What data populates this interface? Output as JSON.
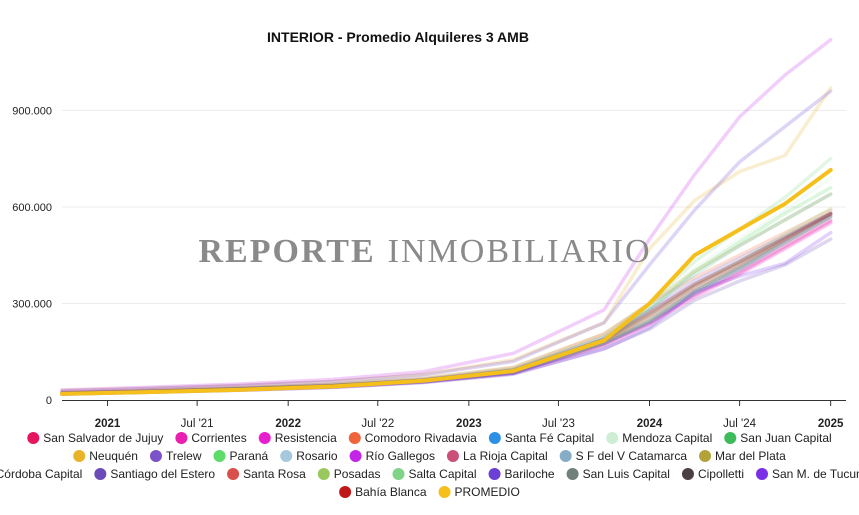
{
  "watermark": {
    "bold": "REPORTE",
    "rest": "INMOBILIARIO"
  },
  "colors": {
    "gridline": "#ececec",
    "axis": "#333333",
    "promedio": "#f5c01b"
  },
  "chart_data": {
    "type": "line",
    "title": "INTERIOR - Promedio Alquileres 3 AMB",
    "xlabel": "",
    "ylabel": "",
    "x_ticks": [
      {
        "label": "2021",
        "x": "2021-01-01",
        "major": true
      },
      {
        "label": "Jul '21",
        "x": "2021-07-01",
        "major": false
      },
      {
        "label": "2022",
        "x": "2022-01-01",
        "major": true
      },
      {
        "label": "Jul '22",
        "x": "2022-07-01",
        "major": false
      },
      {
        "label": "2023",
        "x": "2023-01-01",
        "major": true
      },
      {
        "label": "Jul '23",
        "x": "2023-07-01",
        "major": false
      },
      {
        "label": "2024",
        "x": "2024-01-01",
        "major": true
      },
      {
        "label": "Jul '24",
        "x": "2024-07-01",
        "major": false
      },
      {
        "label": "2025",
        "x": "2025-01-01",
        "major": true
      }
    ],
    "xlim": [
      "2020-10-01",
      "2025-02-01"
    ],
    "y_ticks": [
      {
        "label": "0",
        "value": 0
      },
      {
        "label": "300.000",
        "value": 300000
      },
      {
        "label": "600.000",
        "value": 600000
      },
      {
        "label": "900.000",
        "value": 900000
      }
    ],
    "ylim": [
      0,
      1150000
    ],
    "grid": true,
    "legend_position": "bottom",
    "x": [
      "2020-10-01",
      "2021-04-01",
      "2021-10-01",
      "2022-04-01",
      "2022-10-01",
      "2023-04-01",
      "2023-10-01",
      "2024-01-01",
      "2024-04-01",
      "2024-07-01",
      "2024-10-01",
      "2025-01-01"
    ],
    "series": [
      {
        "name": "San Salvador de Jujuy",
        "color": "#e5165f",
        "values": [
          20000,
          26000,
          33000,
          42000,
          58000,
          85000,
          175000,
          240000,
          330000,
          400000,
          480000,
          560000
        ]
      },
      {
        "name": "Corrientes",
        "color": "#ea1fb0",
        "values": [
          19000,
          25000,
          31000,
          40000,
          56000,
          83000,
          170000,
          235000,
          320000,
          390000,
          470000,
          550000
        ]
      },
      {
        "name": "Resistencia",
        "color": "#e81fcf",
        "values": [
          19000,
          25000,
          32000,
          41000,
          57000,
          84000,
          172000,
          238000,
          325000,
          395000,
          475000,
          555000
        ]
      },
      {
        "name": "Comodoro Rivadavia",
        "color": "#f0643c",
        "values": [
          24000,
          30000,
          38000,
          48000,
          66000,
          100000,
          205000,
          300000,
          380000,
          450000,
          520000,
          590000
        ]
      },
      {
        "name": "Santa Fé Capital",
        "color": "#2e8fe6",
        "values": [
          19000,
          25000,
          32000,
          41000,
          57000,
          84000,
          175000,
          240000,
          330000,
          405000,
          490000,
          570000
        ]
      },
      {
        "name": "Mendoza Capital",
        "color": "#cdeed5",
        "values": [
          20000,
          27000,
          34000,
          44000,
          62000,
          92000,
          190000,
          290000,
          410000,
          500000,
          590000,
          690000
        ]
      },
      {
        "name": "San Juan Capital",
        "color": "#3dbb5a",
        "values": [
          19000,
          25000,
          32000,
          41000,
          58000,
          86000,
          178000,
          245000,
          335000,
          415000,
          500000,
          580000
        ]
      },
      {
        "name": "Neuquén",
        "color": "#e8b32a",
        "values": [
          30000,
          37000,
          46000,
          58000,
          80000,
          125000,
          240000,
          470000,
          620000,
          710000,
          760000,
          970000
        ]
      },
      {
        "name": "Trelew",
        "color": "#7b52c8",
        "values": [
          22000,
          28000,
          36000,
          46000,
          64000,
          95000,
          195000,
          280000,
          370000,
          440000,
          510000,
          580000
        ]
      },
      {
        "name": "Paraná",
        "color": "#5fdb6a",
        "values": [
          20000,
          26000,
          33000,
          43000,
          60000,
          90000,
          185000,
          280000,
          400000,
          490000,
          580000,
          660000
        ]
      },
      {
        "name": "Rosario",
        "color": "#a6c8dc",
        "values": [
          20000,
          26000,
          33000,
          43000,
          60000,
          88000,
          180000,
          260000,
          350000,
          420000,
          500000,
          575000
        ]
      },
      {
        "name": "Río Gallegos",
        "color": "#c325e6",
        "values": [
          31000,
          40000,
          50000,
          64000,
          88000,
          145000,
          280000,
          500000,
          700000,
          880000,
          1010000,
          1120000
        ]
      },
      {
        "name": "La Rioja Capital",
        "color": "#c95078",
        "values": [
          21000,
          27000,
          35000,
          45000,
          62000,
          92000,
          190000,
          275000,
          360000,
          430000,
          505000,
          580000
        ]
      },
      {
        "name": "S F del V Catamarca",
        "color": "#85aec6",
        "values": [
          20000,
          26000,
          33000,
          43000,
          59000,
          87000,
          178000,
          250000,
          340000,
          410000,
          490000,
          570000
        ]
      },
      {
        "name": "Mar del Plata",
        "color": "#b3a23a",
        "values": [
          23000,
          30000,
          38000,
          49000,
          68000,
          102000,
          205000,
          300000,
          400000,
          480000,
          560000,
          640000
        ]
      },
      {
        "name": "Córdoba Capital",
        "color": "#5bb8a6",
        "values": [
          21000,
          27000,
          35000,
          45000,
          62000,
          92000,
          190000,
          285000,
          390000,
          480000,
          560000,
          640000
        ]
      },
      {
        "name": "Santiago del Estero",
        "color": "#6b4bb8",
        "values": [
          18000,
          24000,
          30000,
          39000,
          54000,
          80000,
          160000,
          220000,
          310000,
          370000,
          420000,
          500000
        ]
      },
      {
        "name": "Santa Rosa",
        "color": "#d9504a",
        "values": [
          20000,
          26000,
          33000,
          43000,
          59000,
          88000,
          180000,
          255000,
          345000,
          415000,
          495000,
          575000
        ]
      },
      {
        "name": "Posadas",
        "color": "#99c85e",
        "values": [
          20000,
          26000,
          33000,
          43000,
          60000,
          89000,
          182000,
          262000,
          355000,
          430000,
          515000,
          595000
        ]
      },
      {
        "name": "Salta Capital",
        "color": "#7fd488",
        "values": [
          21000,
          27000,
          35000,
          45000,
          63000,
          95000,
          195000,
          300000,
          430000,
          530000,
          630000,
          750000
        ]
      },
      {
        "name": "Bariloche",
        "color": "#6a40d6",
        "values": [
          28000,
          36000,
          45000,
          57000,
          78000,
          120000,
          240000,
          420000,
          590000,
          740000,
          850000,
          960000
        ]
      },
      {
        "name": "San Luis Capital",
        "color": "#70807a",
        "values": [
          19000,
          25000,
          32000,
          41000,
          57000,
          85000,
          176000,
          245000,
          340000,
          410000,
          490000,
          570000
        ]
      },
      {
        "name": "Cipolletti",
        "color": "#4a3f45",
        "values": [
          21000,
          27000,
          35000,
          45000,
          62000,
          92000,
          188000,
          270000,
          360000,
          430000,
          505000,
          580000
        ]
      },
      {
        "name": "San M. de Tucumán",
        "color": "#7a2ee6",
        "values": [
          18000,
          24000,
          31000,
          40000,
          55000,
          82000,
          158000,
          225000,
          335000,
          385000,
          425000,
          520000
        ]
      },
      {
        "name": "Bahía Blanca",
        "color": "#c01818",
        "values": [
          21000,
          27000,
          34000,
          44000,
          61000,
          91000,
          185000,
          265000,
          355000,
          425000,
          500000,
          578000
        ]
      },
      {
        "name": "PROMEDIO",
        "color": "#f5c01b",
        "highlight": true,
        "values": [
          19000,
          25000,
          32000,
          42000,
          60000,
          90000,
          185000,
          300000,
          450000,
          530000,
          610000,
          715000
        ]
      }
    ]
  }
}
